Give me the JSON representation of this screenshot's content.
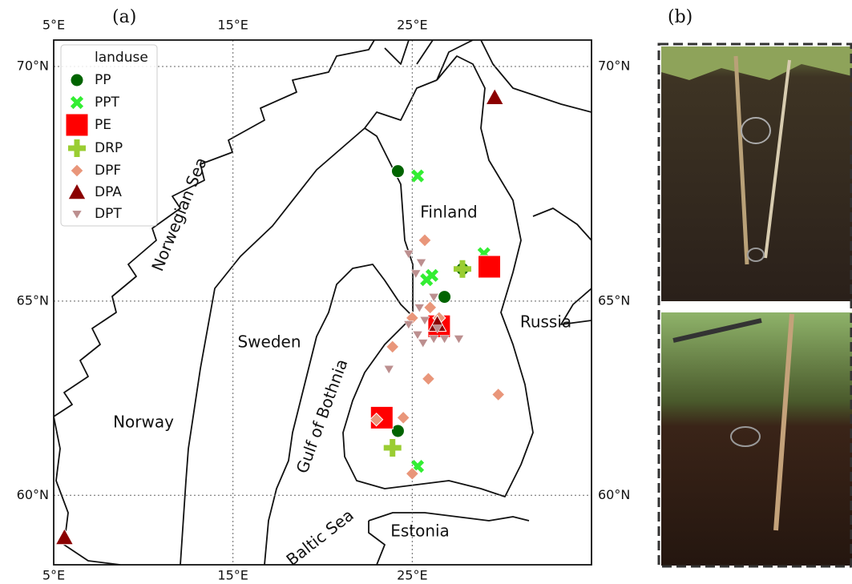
{
  "chart_data": {
    "type": "map",
    "panel_label": "(a)",
    "photo_label": "(b)",
    "projection": "mercator",
    "xlim": [
      5,
      35
    ],
    "ylim": [
      58,
      70.5
    ],
    "xticks": [
      {
        "value": 5,
        "label": "5°E"
      },
      {
        "value": 15,
        "label": "15°E"
      },
      {
        "value": 25,
        "label": "25°E"
      }
    ],
    "yticks": [
      {
        "value": 60,
        "label": "60°N"
      },
      {
        "value": 65,
        "label": "65°N"
      },
      {
        "value": 70,
        "label": "70°N"
      }
    ],
    "grid": true,
    "legend_title": "landuse",
    "legend": "upper left",
    "places": [
      "Norwegian Sea",
      "Finland",
      "Russia",
      "Sweden",
      "Norway",
      "Gulf of Bothnia",
      "Baltic Sea",
      "Estonia"
    ],
    "series": [
      {
        "name": "PP",
        "color": "#006400",
        "marker": "circle",
        "x": [
          24.2,
          26.8,
          27.8,
          24.2
        ],
        "y": [
          67.9,
          65.1,
          65.75,
          61.75
        ]
      },
      {
        "name": "PPT",
        "color": "#33ee33",
        "marker": "x",
        "x": [
          25.3,
          29.0,
          26.1,
          25.8,
          25.3
        ],
        "y": [
          67.8,
          66.1,
          65.6,
          65.5,
          60.8
        ]
      },
      {
        "name": "PE",
        "color": "#ff0000",
        "marker": "square",
        "x": [
          29.3,
          26.5,
          23.3
        ],
        "y": [
          65.8,
          64.4,
          62.1
        ]
      },
      {
        "name": "DRP",
        "color": "#9acd32",
        "marker": "plus",
        "x": [
          27.8,
          23.9
        ],
        "y": [
          65.75,
          61.3
        ]
      },
      {
        "name": "DPF",
        "color": "#e9967a",
        "marker": "diamond",
        "x": [
          25.7,
          26.0,
          26.5,
          25.0,
          23.9,
          25.9,
          29.8,
          24.5,
          23.0,
          25.0
        ],
        "y": [
          66.4,
          64.85,
          64.6,
          64.6,
          63.9,
          63.1,
          62.7,
          62.1,
          62.05,
          60.6
        ]
      },
      {
        "name": "DPA",
        "color": "#8b0000",
        "marker": "triangle-up",
        "x": [
          29.6,
          26.4,
          5.6
        ],
        "y": [
          69.4,
          64.45,
          58.8
        ]
      },
      {
        "name": "DPT",
        "color": "#bc8f8f",
        "marker": "triangle-down",
        "x": [
          24.8,
          25.5,
          25.2,
          26.2,
          25.4,
          25.7,
          26.4,
          25.3,
          25.6,
          26.2,
          26.8,
          27.6,
          23.7,
          24.8
        ],
        "y": [
          66.1,
          65.9,
          65.65,
          65.1,
          64.85,
          64.55,
          64.35,
          64.2,
          64.0,
          64.1,
          64.1,
          64.1,
          63.35,
          64.45
        ]
      }
    ]
  }
}
